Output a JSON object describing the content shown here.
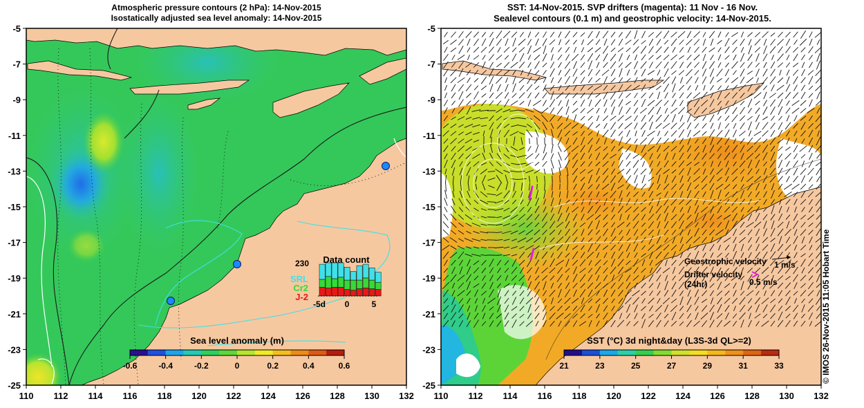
{
  "left_panel": {
    "title_line1": "Atmospheric pressure contours (2 hPa): 14-Nov-2015",
    "title_line2": "Isostatically adjusted sea level anomaly: 14-Nov-2015",
    "colorbar": {
      "label": "Sea level anomaly (m)",
      "ticks": [
        "-0.6",
        "-0.4",
        "-0.2",
        "0",
        "0.2",
        "0.4",
        "0.6"
      ],
      "colors": [
        "#2a0f8f",
        "#1f50e0",
        "#1ea3ea",
        "#26c9b4",
        "#2fcf5c",
        "#5fd63a",
        "#b7e42c",
        "#f0ea26",
        "#f5bd1f",
        "#ee8a1a",
        "#dd5a14",
        "#b41c10"
      ]
    },
    "data_count": {
      "title": "Data count",
      "max_label": "230",
      "series": [
        {
          "name": "SRL",
          "color": "#40e0e8"
        },
        {
          "name": "Cr2",
          "color": "#38d838"
        },
        {
          "name": "J-2",
          "color": "#e81818"
        }
      ],
      "x_ticks": [
        "-5d",
        "0",
        "5"
      ],
      "bars": [
        {
          "srl": 105,
          "cr2": 55,
          "j2": 60
        },
        {
          "srl": 95,
          "cr2": 80,
          "j2": 55
        },
        {
          "srl": 110,
          "cr2": 60,
          "j2": 60
        },
        {
          "srl": 100,
          "cr2": 70,
          "j2": 60
        },
        {
          "srl": 90,
          "cr2": 65,
          "j2": 45
        },
        {
          "srl": 60,
          "cr2": 70,
          "j2": 40
        },
        {
          "srl": 100,
          "cr2": 60,
          "j2": 50
        },
        {
          "srl": 95,
          "cr2": 70,
          "j2": 55
        },
        {
          "srl": 85,
          "cr2": 60,
          "j2": 50
        },
        {
          "srl": 70,
          "cr2": 50,
          "j2": 45
        }
      ]
    }
  },
  "right_panel": {
    "title_line1": "SST: 14-Nov-2015. SVP drifters (magenta): 11 Nov - 16 Nov.",
    "title_line2": "Sealevel contours (0.1 m) and geostrophic velocity: 14-Nov-2015.",
    "colorbar": {
      "label": "SST (°C) 3d night&day (L3S-3d QL>=2)",
      "ticks": [
        "21",
        "23",
        "25",
        "27",
        "29",
        "31",
        "33"
      ],
      "colors": [
        "#20108a",
        "#1a4fd8",
        "#1aa8e8",
        "#2bcfa8",
        "#36cf4c",
        "#84db30",
        "#cfe12a",
        "#f4dc22",
        "#f5b81c",
        "#ef9018",
        "#df6414",
        "#b92a10"
      ]
    },
    "legend": {
      "geostrophic_label": "Geostrophic velocity",
      "geostrophic_scale": "1 m/s",
      "drifter_label_line1": "Drifter velocity",
      "drifter_label_line2": "(24hr)",
      "drifter_scale": "0.5 m/s"
    }
  },
  "axes": {
    "x_ticks": [
      "110",
      "112",
      "114",
      "116",
      "118",
      "120",
      "122",
      "124",
      "126",
      "128",
      "130",
      "132"
    ],
    "y_ticks": [
      "-5",
      "-7",
      "-9",
      "-11",
      "-13",
      "-15",
      "-17",
      "-19",
      "-21",
      "-23",
      "-25"
    ]
  },
  "credit": "© IMOS 26-Nov-2015 11:05 Hobart Time",
  "colors": {
    "land": "#f6c8a0",
    "sea_left": "#34c85a",
    "sst_warm": "#f2a224",
    "drifter": "#e020e0"
  }
}
